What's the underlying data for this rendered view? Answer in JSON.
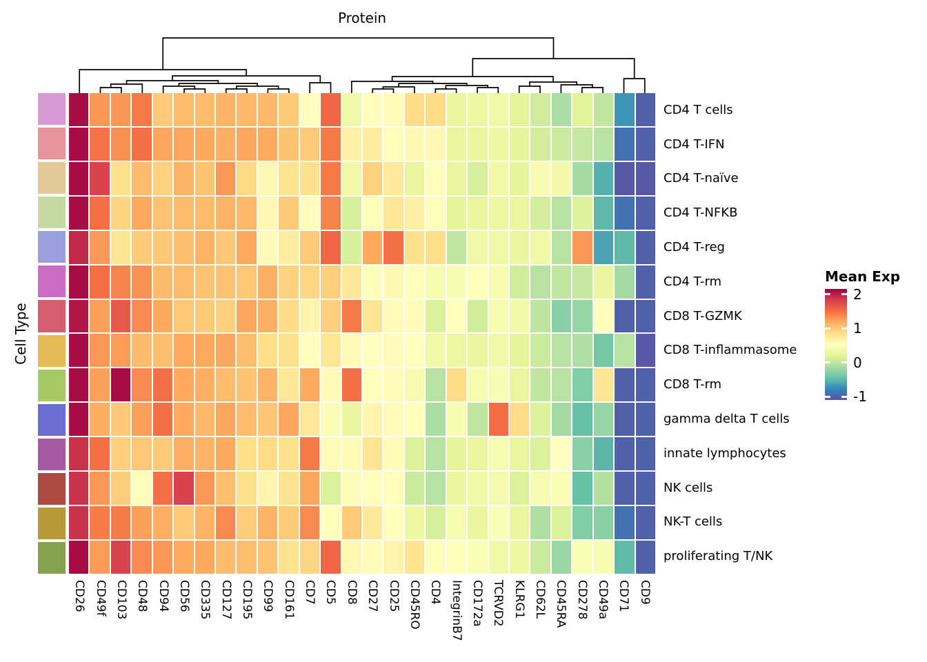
{
  "legend": {
    "title": "Mean Exp",
    "ticks": [
      "2",
      "1",
      "0",
      "-1"
    ],
    "tick_values": [
      2,
      1,
      0,
      -1
    ]
  },
  "chart_data": {
    "type": "heatmap",
    "xlabel": "Protein",
    "ylabel": "Cell Type",
    "legend_title": "Mean Exp",
    "vmin": -1.1,
    "vmax": 2.16,
    "colormap": "Spectral (high=dark red, low=purple)",
    "colormap_stops": [
      [
        0.0,
        "#5e4fa2"
      ],
      [
        0.1,
        "#3288bd"
      ],
      [
        0.2,
        "#66c2a5"
      ],
      [
        0.3,
        "#abdda4"
      ],
      [
        0.4,
        "#e6f598"
      ],
      [
        0.5,
        "#ffffbf"
      ],
      [
        0.6,
        "#fee08b"
      ],
      [
        0.7,
        "#fdae61"
      ],
      [
        0.8,
        "#f46d43"
      ],
      [
        0.9,
        "#d53e4f"
      ],
      [
        1.0,
        "#9e0142"
      ]
    ],
    "columns": [
      "CD26",
      "CD49f",
      "CD103",
      "CD48",
      "CD94",
      "CD56",
      "CD335",
      "CD127",
      "CD195",
      "CD99",
      "CD161",
      "CD7",
      "CD5",
      "CD8",
      "CD27",
      "CD25",
      "CD45RO",
      "CD4",
      "IntegrinB7",
      "CD172a",
      "TCRVD2",
      "KLRG1",
      "CD62L",
      "CD45RA",
      "CD278",
      "CD49a",
      "CD71",
      "CD9"
    ],
    "rows": [
      "CD4 T cells",
      "CD4 T-IFN",
      "CD4 T-naïve",
      "CD4 T-NFKB",
      "CD4 T-reg",
      "CD4 T-rm",
      "CD8 T-GZMK",
      "CD8 T-inflammasome",
      "CD8 T-rm",
      "gamma delta T cells",
      "innate lymphocytes",
      "NK cells",
      "NK-T cells",
      "proliferating T/NK"
    ],
    "row_annotation_colors": [
      "#d79ad3",
      "#e8939b",
      "#e3c995",
      "#c6d9a2",
      "#9b9edc",
      "#cc6cc4",
      "#d65c6f",
      "#e6ba52",
      "#a6c964",
      "#6a6fd1",
      "#a75aa4",
      "#ae4842",
      "#b69a38",
      "#85a24f"
    ],
    "matrix": [
      [
        2.1,
        1.3,
        1.3,
        1.45,
        1.0,
        1.1,
        1.1,
        1.15,
        1.12,
        1.12,
        1.0,
        0.55,
        1.55,
        0.33,
        0.55,
        0.57,
        0.88,
        0.88,
        0.25,
        0.28,
        0.32,
        0.2,
        0.08,
        -0.12,
        0.18,
        0.0,
        -0.7,
        -1.0
      ],
      [
        2.1,
        1.48,
        1.33,
        1.5,
        1.22,
        1.22,
        1.2,
        1.17,
        1.22,
        1.2,
        1.05,
        1.0,
        1.45,
        0.68,
        0.72,
        0.55,
        0.6,
        0.6,
        0.25,
        0.25,
        0.3,
        0.22,
        0.1,
        0.05,
        0.02,
        -0.05,
        -0.9,
        -1.0
      ],
      [
        2.1,
        1.8,
        0.85,
        1.1,
        0.95,
        1.15,
        1.05,
        1.3,
        0.9,
        0.6,
        0.82,
        0.85,
        1.45,
        0.35,
        0.95,
        0.75,
        0.25,
        0.55,
        0.25,
        0.12,
        0.35,
        0.2,
        0.42,
        0.35,
        -0.15,
        -0.55,
        -1.05,
        -1.05
      ],
      [
        2.1,
        1.5,
        0.92,
        1.2,
        1.05,
        1.1,
        1.1,
        1.15,
        1.12,
        0.6,
        1.0,
        0.55,
        1.4,
        0.12,
        0.55,
        0.78,
        0.7,
        0.55,
        0.2,
        0.25,
        0.3,
        0.25,
        0.1,
        -0.05,
        0.15,
        -0.5,
        -0.9,
        -1.0
      ],
      [
        1.95,
        1.28,
        0.8,
        1.0,
        1.02,
        1.07,
        1.15,
        1.02,
        1.2,
        0.58,
        0.72,
        1.0,
        1.55,
        0.12,
        1.2,
        1.5,
        0.85,
        0.87,
        0.0,
        0.35,
        0.32,
        0.27,
        0.35,
        -0.05,
        1.3,
        -0.62,
        -0.5,
        -1.0
      ],
      [
        2.1,
        1.5,
        1.4,
        1.32,
        1.1,
        1.1,
        1.05,
        1.05,
        1.02,
        1.17,
        0.95,
        0.92,
        0.97,
        0.78,
        0.55,
        0.6,
        0.55,
        0.4,
        0.42,
        0.5,
        0.4,
        0.08,
        -0.05,
        0.0,
        0.02,
        0.25,
        -0.15,
        -1.0
      ],
      [
        2.05,
        1.25,
        1.65,
        1.37,
        1.2,
        1.02,
        1.0,
        0.97,
        1.22,
        1.17,
        0.88,
        0.65,
        0.97,
        1.45,
        0.8,
        0.57,
        0.57,
        0.15,
        0.5,
        0.08,
        0.4,
        0.35,
        -0.02,
        -0.28,
        -0.22,
        0.5,
        -1.0,
        -1.0
      ],
      [
        2.1,
        1.3,
        1.27,
        1.1,
        1.07,
        1.2,
        1.2,
        1.22,
        1.08,
        0.87,
        0.85,
        0.52,
        0.8,
        0.58,
        0.52,
        0.57,
        0.5,
        0.35,
        0.28,
        0.25,
        0.35,
        0.22,
        0.05,
        -0.05,
        -0.1,
        -0.38,
        -0.05,
        -1.05
      ],
      [
        2.1,
        1.25,
        2.1,
        1.37,
        1.5,
        1.2,
        1.17,
        1.1,
        1.05,
        1.15,
        0.78,
        1.2,
        0.58,
        1.5,
        0.5,
        0.57,
        0.4,
        -0.05,
        0.88,
        0.4,
        0.43,
        0.25,
        0.0,
        -0.05,
        -0.32,
        0.8,
        -1.0,
        -1.0
      ],
      [
        2.1,
        1.17,
        1.0,
        1.25,
        1.5,
        1.2,
        1.12,
        1.22,
        1.1,
        1.03,
        1.22,
        0.78,
        0.45,
        0.25,
        0.65,
        0.57,
        0.5,
        -0.12,
        0.4,
        0.0,
        1.52,
        0.88,
        0.15,
        -0.15,
        -0.45,
        -0.22,
        -1.0,
        -1.0
      ],
      [
        1.9,
        1.5,
        0.97,
        1.02,
        1.0,
        1.17,
        1.15,
        1.2,
        0.87,
        0.88,
        0.85,
        1.45,
        0.57,
        0.57,
        0.8,
        0.57,
        0.15,
        -0.05,
        0.22,
        0.25,
        0.4,
        0.25,
        0.15,
        0.52,
        -0.28,
        -0.52,
        -1.0,
        -1.0
      ],
      [
        1.9,
        1.3,
        0.98,
        0.5,
        1.5,
        1.8,
        1.3,
        1.08,
        0.85,
        0.65,
        0.82,
        1.22,
        0.15,
        0.48,
        0.55,
        0.55,
        0.05,
        -0.05,
        0.27,
        0.32,
        0.38,
        0.15,
        0.4,
        0.45,
        -0.45,
        -0.07,
        -1.0,
        -1.0
      ],
      [
        1.9,
        1.43,
        1.43,
        1.25,
        1.17,
        1.0,
        1.15,
        1.37,
        0.98,
        1.15,
        1.0,
        1.37,
        0.5,
        1.0,
        0.77,
        0.5,
        0.3,
        0.12,
        0.4,
        0.27,
        0.45,
        0.25,
        -0.1,
        0.15,
        -0.32,
        -0.28,
        -0.9,
        -1.0
      ],
      [
        2.1,
        1.27,
        1.8,
        1.37,
        1.3,
        1.2,
        1.2,
        1.1,
        1.07,
        1.05,
        0.83,
        0.92,
        1.55,
        0.62,
        0.57,
        0.65,
        0.82,
        0.5,
        0.5,
        0.45,
        0.32,
        0.3,
        0.05,
        -0.2,
        0.45,
        0.4,
        -0.48,
        -1.0
      ]
    ]
  }
}
